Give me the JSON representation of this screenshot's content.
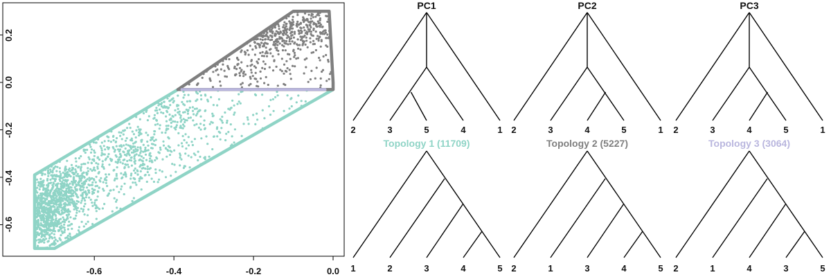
{
  "colors": {
    "topology1": "#8fd4c6",
    "topology2": "#7f7f7f",
    "topology3": "#b9b6de",
    "ink": "#000000"
  },
  "chart_data": [
    {
      "type": "scatter",
      "title": "",
      "xlabel": "",
      "ylabel": "",
      "xlim": [
        -0.77,
        0.02
      ],
      "ylim": [
        -0.72,
        0.31
      ],
      "x_ticks": [
        -0.6,
        -0.4,
        -0.2,
        0.0
      ],
      "x_tick_labels": [
        "-0.6",
        "-0.4",
        "-0.2",
        "0.0"
      ],
      "y_ticks": [
        -0.6,
        -0.4,
        -0.2,
        0.0,
        0.2
      ],
      "y_tick_labels": [
        "-0.6",
        "-0.4",
        "-0.2",
        "0.0",
        "0.2"
      ],
      "grid": false,
      "series": [
        {
          "color_key": "topology1",
          "outline": [
            [
              -0.75,
              -0.7
            ],
            [
              -0.7,
              -0.7
            ],
            [
              0.0,
              -0.03
            ],
            [
              -0.39,
              -0.03
            ],
            [
              -0.75,
              -0.39
            ]
          ],
          "dense_clusters": [
            {
              "x": -0.72,
              "y": -0.55,
              "sx": 0.035,
              "sy": 0.09,
              "n": 700
            },
            {
              "x": -0.65,
              "y": -0.44,
              "sx": 0.04,
              "sy": 0.05,
              "n": 300
            },
            {
              "x": -0.53,
              "y": -0.3,
              "sx": 0.07,
              "sy": 0.06,
              "n": 260
            },
            {
              "x": -0.4,
              "y": -0.14,
              "sx": 0.06,
              "sy": 0.05,
              "n": 120
            }
          ]
        },
        {
          "color_key": "topology2",
          "outline": [
            [
              -0.39,
              -0.03
            ],
            [
              0.0,
              -0.03
            ],
            [
              0.0,
              0.0
            ],
            [
              -0.01,
              0.3
            ],
            [
              -0.1,
              0.3
            ]
          ],
          "dense_clusters": [
            {
              "x": -0.14,
              "y": 0.2,
              "sx": 0.05,
              "sy": 0.04,
              "n": 220
            },
            {
              "x": -0.05,
              "y": 0.24,
              "sx": 0.03,
              "sy": 0.04,
              "n": 90
            },
            {
              "x": -0.25,
              "y": 0.07,
              "sx": 0.06,
              "sy": 0.04,
              "n": 70
            }
          ]
        },
        {
          "color_key": "topology3",
          "outline": [
            [
              -0.38,
              -0.03
            ],
            [
              -0.02,
              -0.03
            ]
          ],
          "dense_clusters": []
        }
      ]
    }
  ],
  "trees": {
    "row1": [
      {
        "title": "PC1",
        "leaves": [
          "2",
          "3",
          "5",
          "4",
          "1"
        ]
      },
      {
        "title": "PC2",
        "leaves": [
          "2",
          "3",
          "4",
          "5",
          "1"
        ]
      },
      {
        "title": "PC3",
        "leaves": [
          "2",
          "3",
          "4",
          "5",
          "1"
        ]
      }
    ],
    "row2": [
      {
        "title": "Topology 1 (11709)",
        "color_key": "topology1",
        "leaves": [
          "1",
          "2",
          "3",
          "4",
          "5"
        ]
      },
      {
        "title": "Topology 2 (5227)",
        "color_key": "topology2",
        "leaves": [
          "2",
          "1",
          "3",
          "4",
          "5"
        ]
      },
      {
        "title": "Topology 3 (3064)",
        "color_key": "topology3",
        "leaves": [
          "2",
          "1",
          "4",
          "3",
          "5"
        ]
      }
    ]
  }
}
